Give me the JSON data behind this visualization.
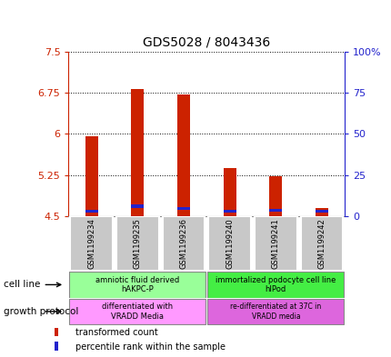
{
  "title": "GDS5028 / 8043436",
  "samples": [
    "GSM1199234",
    "GSM1199235",
    "GSM1199236",
    "GSM1199240",
    "GSM1199241",
    "GSM1199242"
  ],
  "red_values": [
    5.95,
    6.82,
    6.72,
    5.38,
    5.22,
    4.65
  ],
  "blue_values": [
    4.56,
    4.65,
    4.61,
    4.56,
    4.58,
    4.56
  ],
  "ylim_left": [
    4.5,
    7.5
  ],
  "ylim_right": [
    0,
    100
  ],
  "yticks_left": [
    4.5,
    5.25,
    6.0,
    6.75,
    7.5
  ],
  "yticks_left_labels": [
    "4.5",
    "5.25",
    "6",
    "6.75",
    "7.5"
  ],
  "yticks_right": [
    0,
    25,
    50,
    75,
    100
  ],
  "yticks_right_labels": [
    "0",
    "25",
    "50",
    "75",
    "100%"
  ],
  "bar_width": 0.28,
  "red_color": "#cc2200",
  "blue_color": "#2222cc",
  "cell_line_labels": [
    "amniotic fluid derived\nhAKPC-P",
    "immortalized podocyte cell line\nhIPod"
  ],
  "cell_line_colors": [
    "#99ff99",
    "#44ee44"
  ],
  "growth_protocol_labels": [
    "differentiated with\nVRADD Media",
    "re-differentiated at 37C in\nVRADD media"
  ],
  "growth_protocol_colors": [
    "#ff99ff",
    "#dd66dd"
  ],
  "left_axis_color": "#cc2200",
  "right_axis_color": "#2222cc",
  "bg_color": "#ffffff"
}
